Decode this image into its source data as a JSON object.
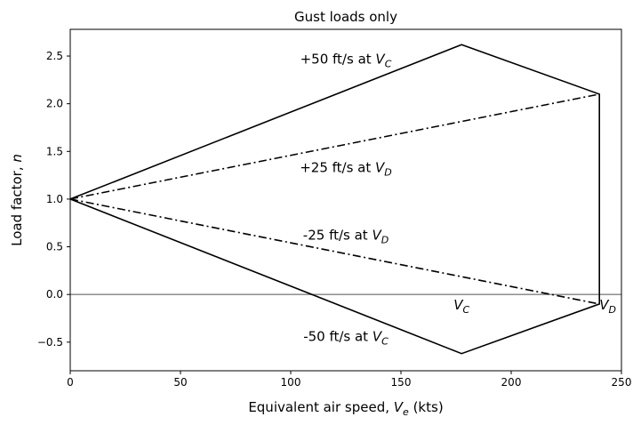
{
  "chart_data": {
    "type": "line",
    "title": "Gust loads only",
    "xlabel": {
      "text": "Equivalent air speed, ",
      "var": "V",
      "sub": "e",
      "unit": " (kts)"
    },
    "ylabel": {
      "text": "Load factor, ",
      "var": "n"
    },
    "xlim": [
      0,
      250
    ],
    "ylim": [
      -0.8,
      2.78
    ],
    "xticks": [
      0,
      50,
      100,
      150,
      200,
      250
    ],
    "yticks": [
      -0.5,
      0.0,
      0.5,
      1.0,
      1.5,
      2.0,
      2.5
    ],
    "ytick_labels": [
      "−0.5",
      "0.0",
      "0.5",
      "1.0",
      "1.5",
      "2.0",
      "2.5"
    ],
    "grid": false,
    "series": [
      {
        "style": "solid",
        "color": "#000000",
        "x": [
          0,
          177.5,
          240,
          240,
          177.5,
          0
        ],
        "y": [
          1.0,
          2.62,
          2.1,
          -0.1,
          -0.62,
          1.0
        ]
      },
      {
        "style": "dashdot",
        "color": "#000000",
        "x": [
          0,
          240
        ],
        "y": [
          1.0,
          2.1
        ]
      },
      {
        "style": "dashdot",
        "color": "#000000",
        "x": [
          0,
          240
        ],
        "y": [
          1.0,
          -0.1
        ]
      }
    ],
    "reference_lines": [
      {
        "axis": "y",
        "value": 0.0,
        "color": "#808080"
      }
    ],
    "annotations": [
      {
        "id": "gust-plus-50",
        "text": "+50 ft/s at ",
        "var": "V",
        "sub": "C",
        "x": 125,
        "y": 2.47,
        "anchor": "middle"
      },
      {
        "id": "gust-plus-25",
        "text": "+25 ft/s at ",
        "var": "V",
        "sub": "D",
        "x": 125,
        "y": 1.33,
        "anchor": "middle"
      },
      {
        "id": "gust-minus-25",
        "text": "-25 ft/s at ",
        "var": "V",
        "sub": "D",
        "x": 125,
        "y": 0.62,
        "anchor": "middle"
      },
      {
        "id": "gust-minus-50",
        "text": "-50 ft/s at ",
        "var": "V",
        "sub": "C",
        "x": 125,
        "y": -0.44,
        "anchor": "middle"
      },
      {
        "id": "speed-vc",
        "text": "",
        "var": "V",
        "sub": "C",
        "x": 177.5,
        "y": -0.11,
        "anchor": "middle"
      },
      {
        "id": "speed-vd",
        "text": "",
        "var": "V",
        "sub": "D",
        "x": 240,
        "y": -0.11,
        "anchor": "start"
      }
    ]
  }
}
